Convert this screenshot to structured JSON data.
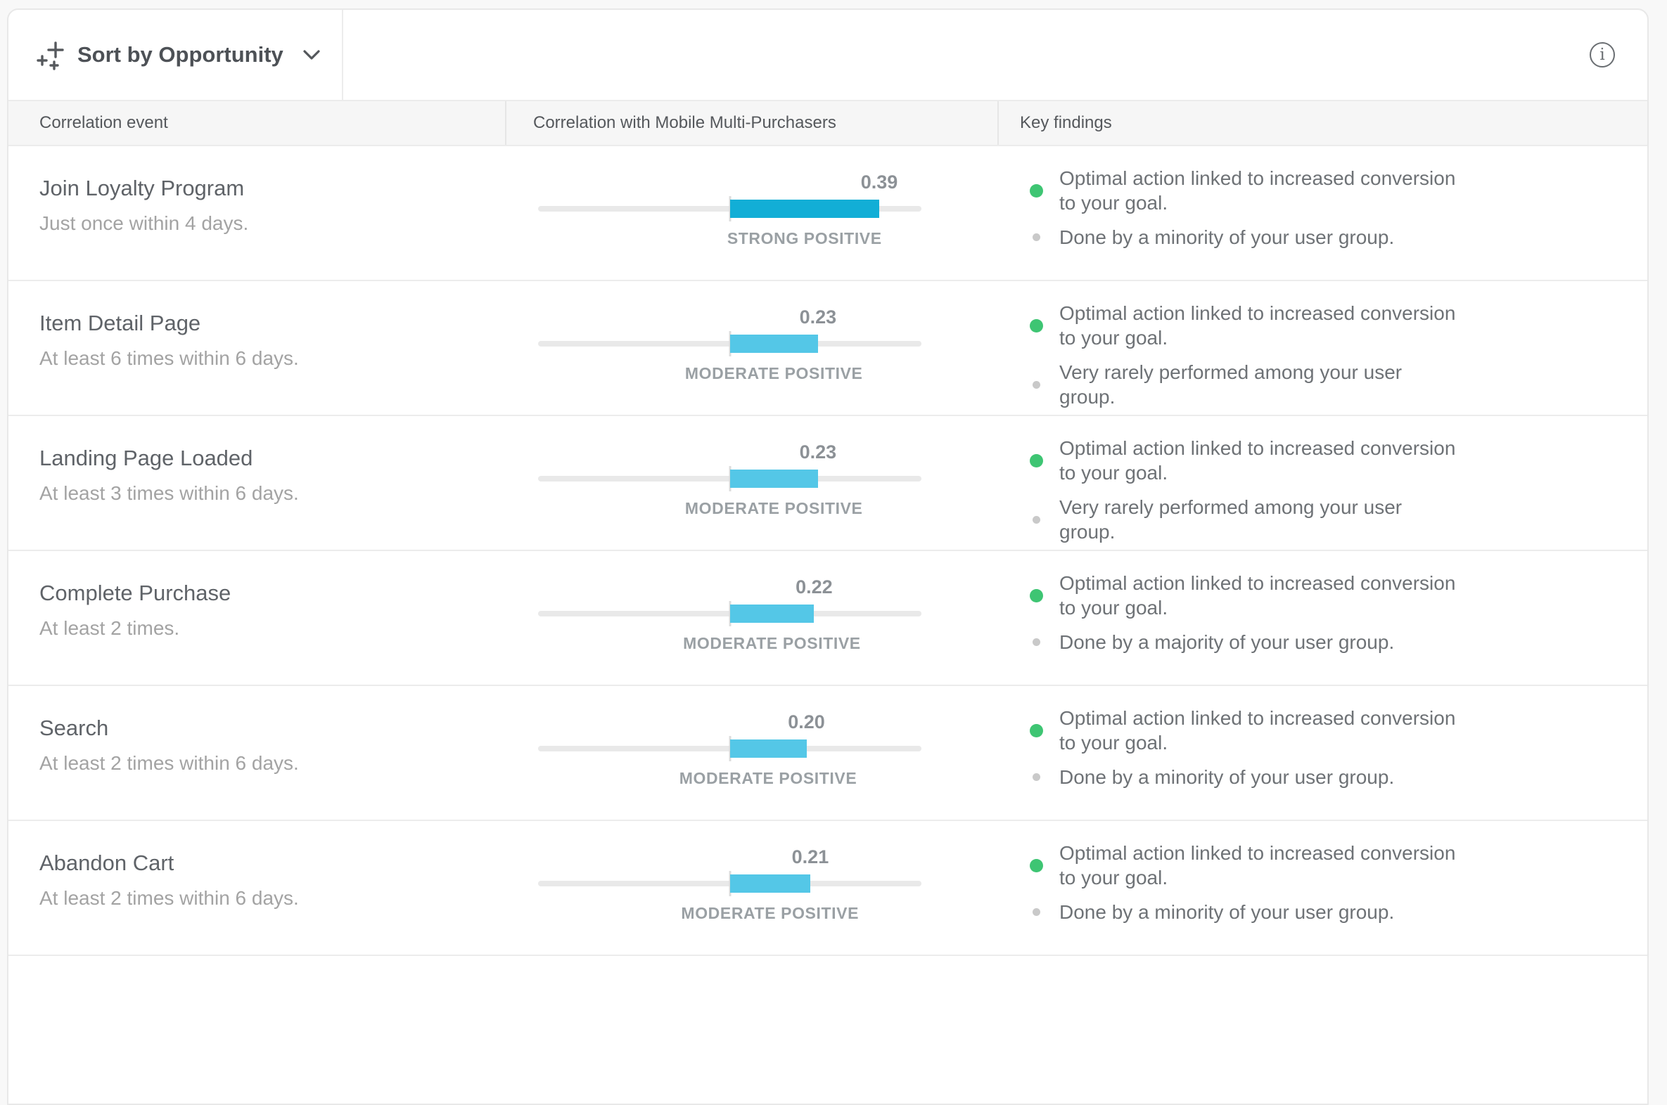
{
  "toolbar": {
    "sort_button_label": "Sort by Opportunity",
    "icons": {
      "sort": "sparkle-plus-icon",
      "chevron": "chevron-down-icon",
      "info": "info-circle-icon"
    },
    "info_glyph": "i"
  },
  "colors": {
    "strong_bar": "#12aed6",
    "moderate_bar": "#54c7e7",
    "green_dot": "#3ec573",
    "gray_dot": "#c9c9c9",
    "track": "#e9e9e9"
  },
  "table": {
    "headers": [
      "Correlation event",
      "Correlation with Mobile Multi-Purchasers",
      "Key findings"
    ],
    "axis": {
      "min": -0.5,
      "max": 0.5
    },
    "rows": [
      {
        "event": "Join Loyalty Program",
        "criteria": "Just once within 4 days.",
        "correlation": 0.39,
        "strength": "STRONG POSITIVE",
        "bar_color": "#12aed6",
        "findings": [
          {
            "dot": "green",
            "text": "Optimal action linked to increased conversion to your goal."
          },
          {
            "dot": "gray",
            "text": "Done by a minority of your user group."
          }
        ]
      },
      {
        "event": "Item Detail Page",
        "criteria": "At least 6 times within 6 days.",
        "correlation": 0.23,
        "strength": "MODERATE POSITIVE",
        "bar_color": "#54c7e7",
        "findings": [
          {
            "dot": "green",
            "text": "Optimal action linked to increased conversion to your goal."
          },
          {
            "dot": "gray",
            "text": "Very rarely performed among your user group."
          }
        ]
      },
      {
        "event": "Landing Page Loaded",
        "criteria": "At least 3 times within 6 days.",
        "correlation": 0.23,
        "strength": "MODERATE POSITIVE",
        "bar_color": "#54c7e7",
        "findings": [
          {
            "dot": "green",
            "text": "Optimal action linked to increased conversion to your goal."
          },
          {
            "dot": "gray",
            "text": "Very rarely performed among your user group."
          }
        ]
      },
      {
        "event": "Complete Purchase",
        "criteria": "At least 2 times.",
        "correlation": 0.22,
        "strength": "MODERATE POSITIVE",
        "bar_color": "#54c7e7",
        "findings": [
          {
            "dot": "green",
            "text": "Optimal action linked to increased conversion to your goal."
          },
          {
            "dot": "gray",
            "text": "Done by a majority of your user group."
          }
        ]
      },
      {
        "event": "Search",
        "criteria": "At least 2 times within 6 days.",
        "correlation": 0.2,
        "strength": "MODERATE POSITIVE",
        "bar_color": "#54c7e7",
        "findings": [
          {
            "dot": "green",
            "text": "Optimal action linked to increased conversion to your goal."
          },
          {
            "dot": "gray",
            "text": "Done by a minority of your user group."
          }
        ]
      },
      {
        "event": "Abandon Cart",
        "criteria": "At least 2 times within 6 days.",
        "correlation": 0.21,
        "strength": "MODERATE POSITIVE",
        "bar_color": "#54c7e7",
        "findings": [
          {
            "dot": "green",
            "text": "Optimal action linked to increased conversion to your goal."
          },
          {
            "dot": "gray",
            "text": "Done by a minority of your user group."
          }
        ]
      }
    ]
  }
}
